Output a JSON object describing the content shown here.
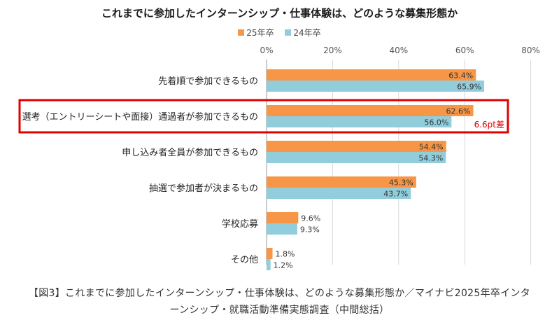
{
  "chart_data": {
    "type": "bar",
    "orientation": "horizontal",
    "title": "これまでに参加したインターンシップ・仕事体験は、どのような募集形態か",
    "categories": [
      "先着順で参加できるもの",
      "選考（エントリーシートや面接）通過者が参加できるもの",
      "申し込み者全員が参加できるもの",
      "抽選で参加者が決まるもの",
      "学校応募",
      "その他"
    ],
    "series": [
      {
        "name": "25年卒",
        "color": "#F79646",
        "values": [
          63.4,
          62.6,
          54.4,
          45.3,
          9.6,
          1.8
        ]
      },
      {
        "name": "24年卒",
        "color": "#92CDDC",
        "values": [
          65.9,
          56.0,
          54.3,
          43.7,
          9.3,
          1.2
        ]
      }
    ],
    "value_suffix": "%",
    "xlim": [
      0,
      80
    ],
    "x_ticks": [
      "0%",
      "20%",
      "40%",
      "60%",
      "80%"
    ],
    "grid": true,
    "legend_position": "top-center",
    "highlight": {
      "category_index": 1,
      "color": "#E00000",
      "annotation": "6.6pt差"
    }
  },
  "caption": {
    "line1": "【図3】これまでに参加したインターンシップ・仕事体験は、どのような募集形態か／マイナビ2025年卒インタ",
    "line2": "ーンシップ・就職活動準備実態調査（中間総括）"
  }
}
